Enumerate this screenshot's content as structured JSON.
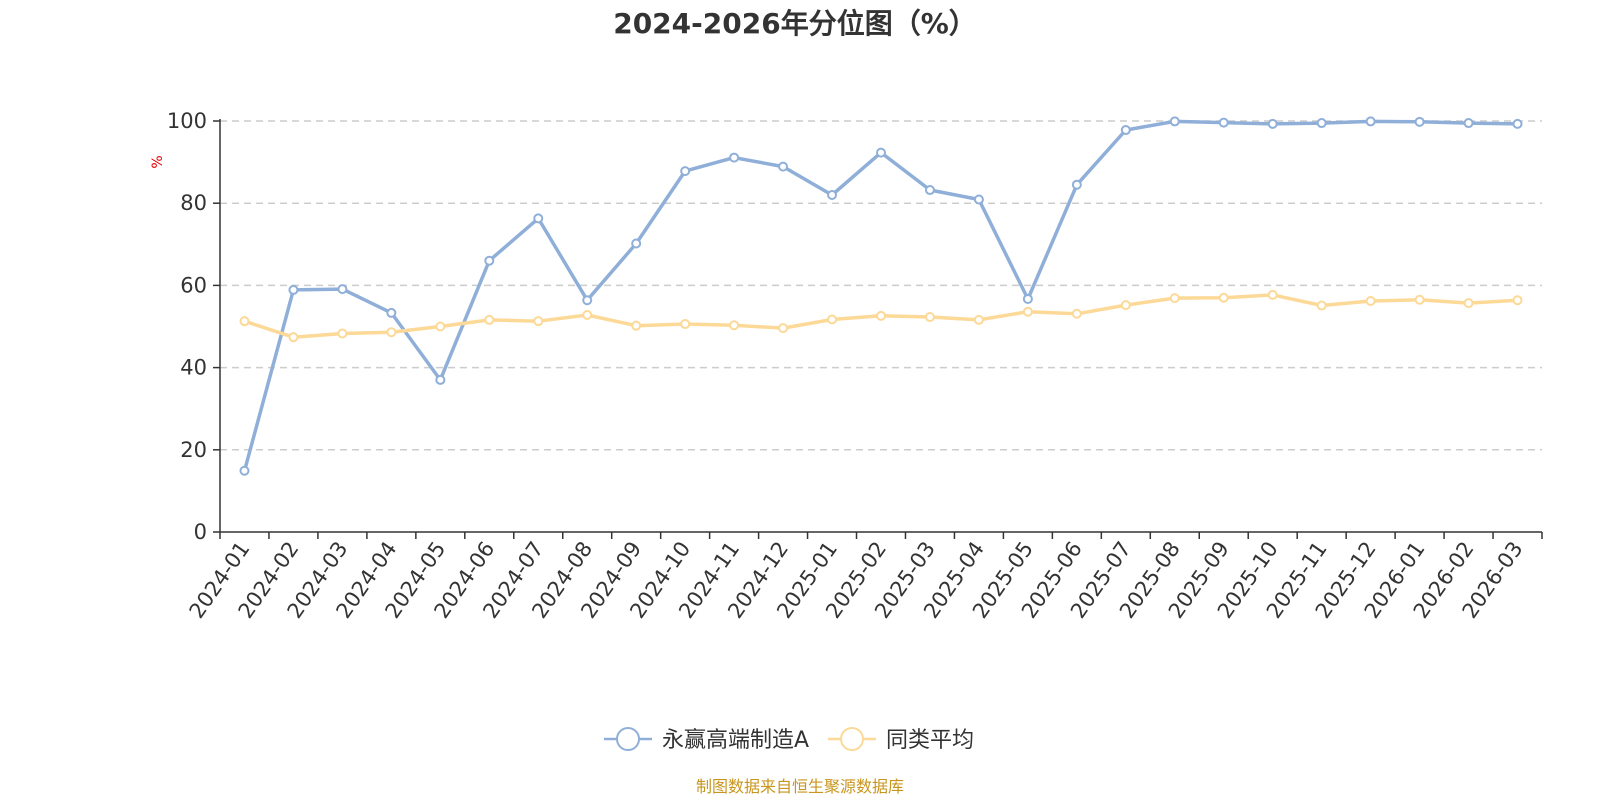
{
  "chart_data": {
    "type": "line",
    "title": "2024-2026年分位图（%）",
    "ylabel": "%",
    "ylim": [
      0,
      100
    ],
    "yticks": [
      0,
      20,
      40,
      60,
      80,
      100
    ],
    "grid": true,
    "legend_position": "bottom-center",
    "categories": [
      "2024-01",
      "2024-02",
      "2024-03",
      "2024-04",
      "2024-05",
      "2024-06",
      "2024-07",
      "2024-08",
      "2024-09",
      "2024-10",
      "2024-11",
      "2024-12",
      "2025-01",
      "2025-02",
      "2025-03",
      "2025-04",
      "2025-05",
      "2025-06",
      "2025-07",
      "2025-08",
      "2025-09",
      "2025-10",
      "2025-11",
      "2025-12",
      "2026-01",
      "2026-02",
      "2026-03"
    ],
    "series": [
      {
        "name": "永赢高端制造A",
        "color": "#8fafd9",
        "values": [
          14.9,
          58.9,
          59.1,
          53.3,
          37.0,
          66.0,
          76.3,
          56.4,
          70.2,
          87.8,
          91.1,
          88.9,
          82.0,
          92.3,
          83.2,
          80.9,
          56.7,
          84.5,
          97.8,
          99.9,
          99.6,
          99.3,
          99.5,
          99.9,
          99.8,
          99.5,
          99.3
        ]
      },
      {
        "name": "同类平均",
        "color": "#fcd997",
        "values": [
          51.3,
          47.4,
          48.3,
          48.6,
          50.0,
          51.6,
          51.3,
          52.8,
          50.2,
          50.6,
          50.3,
          49.6,
          51.7,
          52.6,
          52.3,
          51.6,
          53.6,
          53.1,
          55.2,
          56.9,
          57.0,
          57.7,
          55.1,
          56.2,
          56.5,
          55.7,
          56.4
        ]
      }
    ]
  },
  "source_note": "制图数据来自恒生聚源数据库"
}
